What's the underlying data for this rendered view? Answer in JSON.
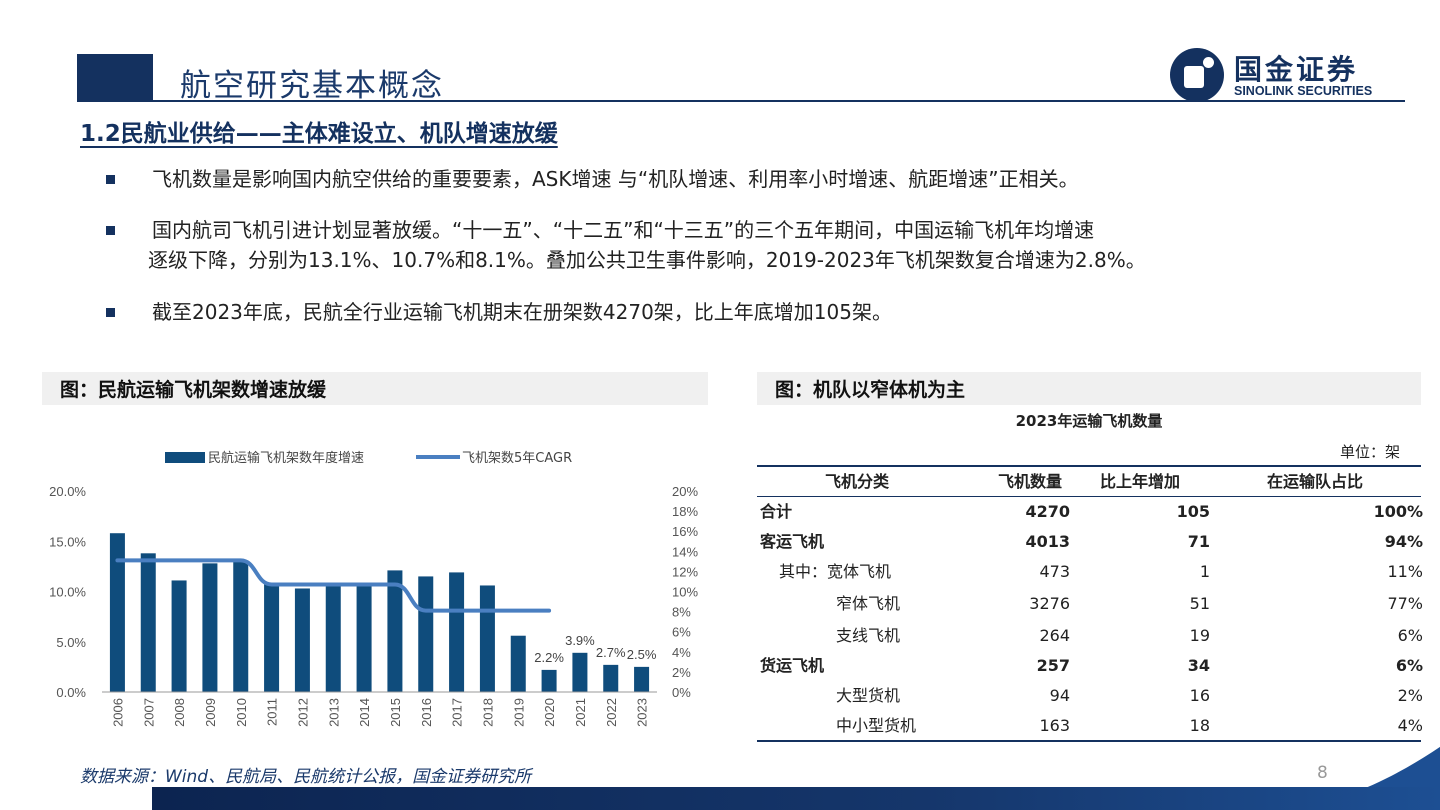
{
  "header": {
    "title": "航空研究基本概念",
    "logo_cn": "国金证券",
    "logo_en": "SINOLINK SECURITIES"
  },
  "section": {
    "title": "1.2民航业供给——主体难设立、机队增速放缓"
  },
  "bullets": [
    "飞机数量是影响国内航空供给的重要要素，ASK增速 与“机队增速、利用率小时增速、航距增速”正相关。",
    "国内航司飞机引进计划显著放缓。“十一五”、“十二五”和“十三五”的三个五年期间，中国运输飞机年均增速",
    "逐级下降，分别为13.1%、10.7%和8.1%。叠加公共卫生事件影响，2019-2023年飞机架数复合增速为2.8%。",
    "截至2023年底，民航全行业运输飞机期末在册架数4270架，比上年底增加105架。"
  ],
  "left_panel": {
    "title": "图：民航运输飞机架数增速放缓"
  },
  "right_panel": {
    "title": "图：机队以窄体机为主",
    "table_title": "2023年运输飞机数量",
    "unit": "单位：架",
    "columns": [
      "飞机分类",
      "飞机数量",
      "比上年增加",
      "在运输队占比"
    ],
    "rows": [
      {
        "name": "合计",
        "count": "4270",
        "increase": "105",
        "share": "100%"
      },
      {
        "name": "客运飞机",
        "count": "4013",
        "increase": "71",
        "share": "94%"
      },
      {
        "name": "其中：宽体飞机",
        "count": "473",
        "increase": "1",
        "share": "11%"
      },
      {
        "name": "窄体飞机",
        "count": "3276",
        "increase": "51",
        "share": "77%"
      },
      {
        "name": "支线飞机",
        "count": "264",
        "increase": "19",
        "share": "6%"
      },
      {
        "name": "货运飞机",
        "count": "257",
        "increase": "34",
        "share": "6%"
      },
      {
        "name": "大型货机",
        "count": "94",
        "increase": "16",
        "share": "2%"
      },
      {
        "name": "中小型货机",
        "count": "163",
        "increase": "18",
        "share": "4%"
      }
    ]
  },
  "footer": {
    "source": "数据来源：Wind、民航局、民航统计公报，国金证券研究所",
    "page": "8"
  },
  "colors": {
    "navy": "#14315f",
    "bar": "#0f4c7c",
    "line": "#4a7fc1"
  },
  "chart_data": {
    "type": "bar",
    "categories": [
      "2006",
      "2007",
      "2008",
      "2009",
      "2010",
      "2011",
      "2012",
      "2013",
      "2014",
      "2015",
      "2016",
      "2017",
      "2018",
      "2019",
      "2020",
      "2021",
      "2022",
      "2023"
    ],
    "series": [
      {
        "name": "民航运输飞机架数年度增速",
        "type": "bar",
        "axis": "left",
        "values": [
          15.8,
          13.8,
          11.1,
          12.8,
          13.1,
          10.7,
          10.3,
          10.7,
          10.7,
          12.1,
          11.5,
          11.9,
          10.6,
          5.6,
          2.2,
          3.9,
          2.7,
          2.5
        ],
        "data_labels": {
          "2020": "2.2%",
          "2021": "3.9%",
          "2022": "2.7%",
          "2023": "2.5%"
        }
      },
      {
        "name": "飞机架数5年CAGR",
        "type": "line",
        "axis": "right",
        "values": [
          13.1,
          13.1,
          13.1,
          13.1,
          13.1,
          10.7,
          10.7,
          10.7,
          10.7,
          10.7,
          8.1,
          8.1,
          8.1,
          8.1,
          8.1,
          null,
          null,
          null
        ]
      }
    ],
    "y_left": {
      "ticks": [
        "0.0%",
        "5.0%",
        "10.0%",
        "15.0%",
        "20.0%"
      ],
      "ylim": [
        0,
        20
      ]
    },
    "y_right": {
      "ticks": [
        "0%",
        "2%",
        "4%",
        "6%",
        "8%",
        "10%",
        "12%",
        "14%",
        "16%",
        "18%",
        "20%"
      ],
      "ylim": [
        0,
        20
      ]
    },
    "legend_position": "top",
    "grid": false
  }
}
